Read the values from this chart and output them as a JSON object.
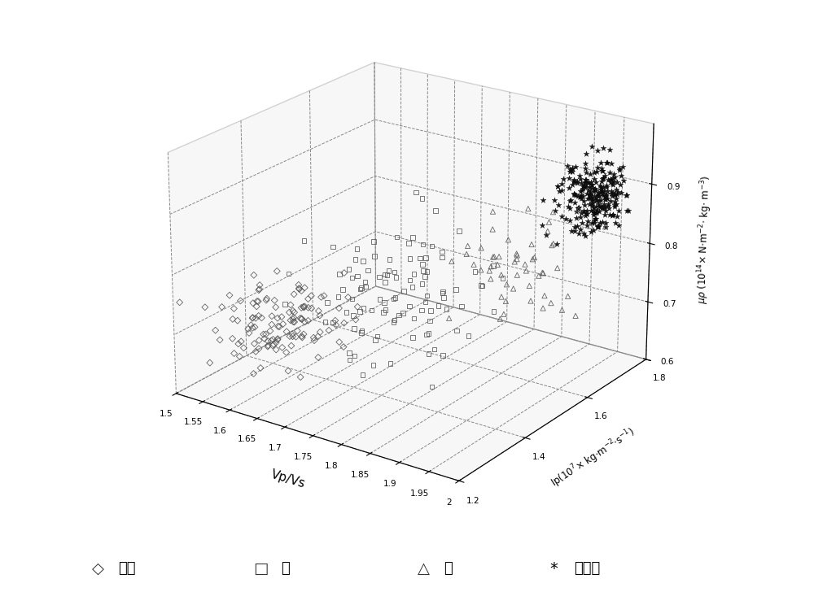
{
  "xlabel": "Vp/Vs",
  "ylabel": "Ip(10⁷× kg·m⁻²·s⁻¹)",
  "zlabel": "μρ (10¹⁴× N·m⁻²· kg· m⁻³)",
  "xlim": [
    1.5,
    2.0
  ],
  "ylim": [
    1.2,
    1.8
  ],
  "zlim": [
    0.6,
    1.0
  ],
  "xticks": [
    1.5,
    1.55,
    1.6,
    1.65,
    1.7,
    1.75,
    1.8,
    1.85,
    1.9,
    1.95,
    2.0
  ],
  "yticks": [
    1.2,
    1.4,
    1.6,
    1.8
  ],
  "zticks": [
    0.6,
    0.7,
    0.8,
    0.9
  ],
  "legend_labels": [
    "油气",
    "水",
    "泥",
    "非储层"
  ],
  "seed": 42,
  "elev": 22,
  "azim": -55
}
